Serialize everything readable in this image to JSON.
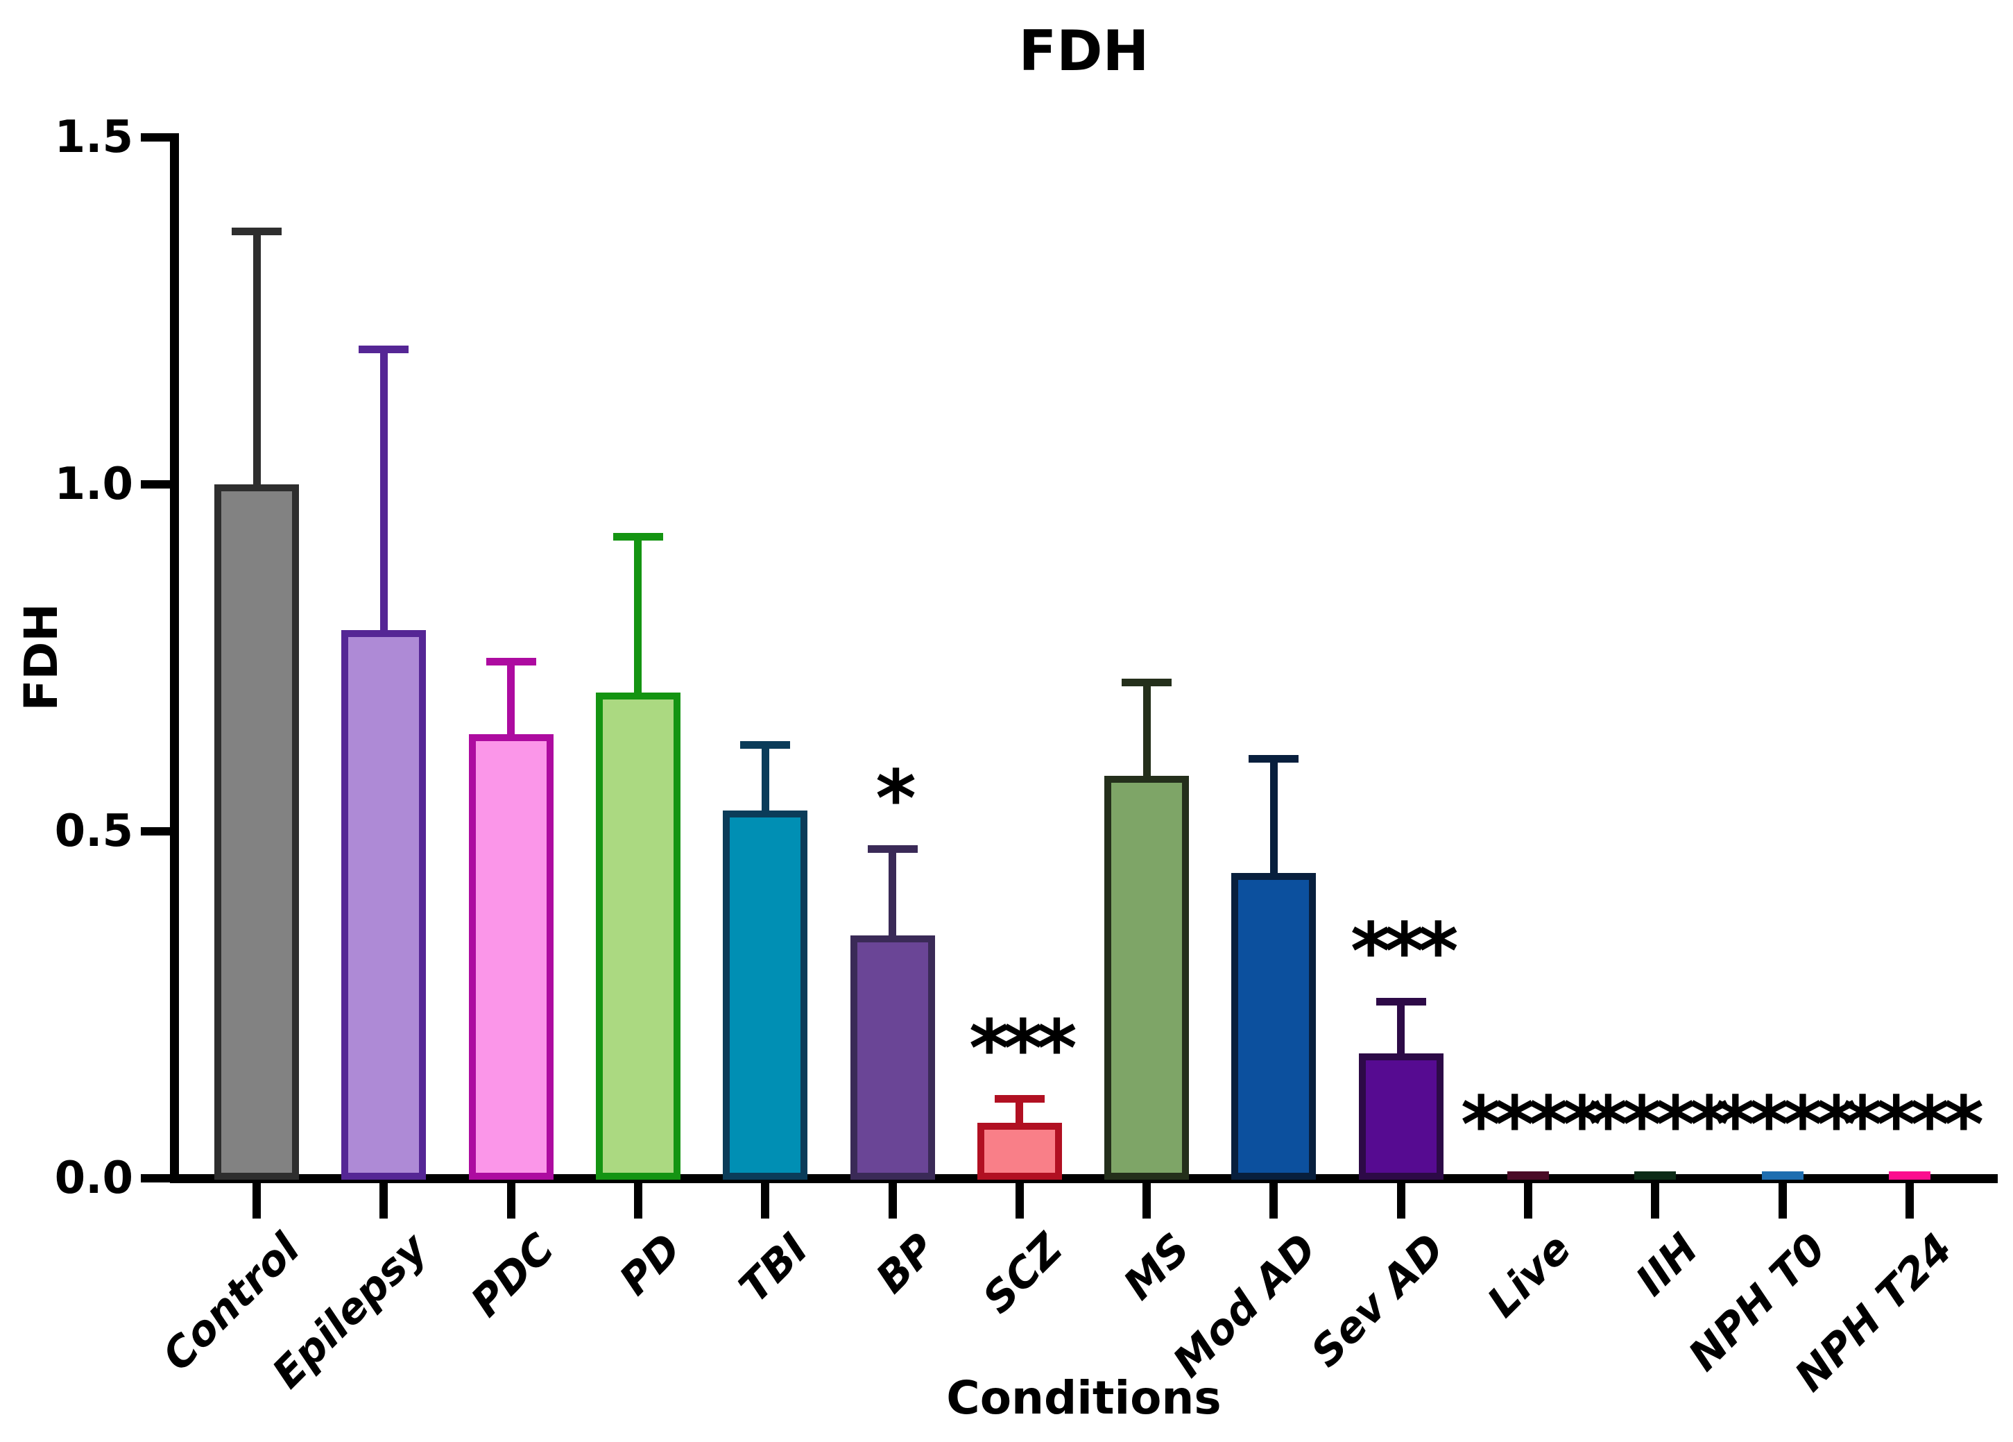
{
  "title": "FDH",
  "axes": {
    "y_label": "FDH",
    "x_label": "Conditions",
    "y_tick_labels": [
      "0.0",
      "0.5",
      "1.0",
      "1.5"
    ]
  },
  "chart_data": {
    "type": "bar",
    "title": "FDH",
    "xlabel": "Conditions",
    "ylabel": "FDH",
    "ylim": [
      0,
      1.5
    ],
    "yticks": [
      0,
      0.5,
      1.0,
      1.5
    ],
    "grid": false,
    "legend": "none",
    "error_bar_type": "SD, upper only",
    "categories": [
      "Control",
      "Epilepsy",
      "PDC",
      "PD",
      "TBI",
      "BP",
      "SCZ",
      "MS",
      "Mod AD",
      "Sev AD",
      "Live",
      "IIH",
      "NPH T0",
      "NPH T24"
    ],
    "values": [
      1.0,
      0.79,
      0.64,
      0.7,
      0.53,
      0.35,
      0.08,
      0.58,
      0.44,
      0.18,
      0.01,
      0.01,
      0.01,
      0.01
    ],
    "errors_sd": [
      0.37,
      0.41,
      0.11,
      0.23,
      0.1,
      0.13,
      0.04,
      0.14,
      0.17,
      0.08,
      null,
      null,
      null,
      null
    ],
    "significance": [
      "",
      "",
      "",
      "",
      "",
      "*",
      "***",
      "",
      "",
      "***",
      "****",
      "****",
      "****",
      "****"
    ],
    "bar_styles": [
      {
        "fill": "#828282",
        "border": "#2e2e2e"
      },
      {
        "fill": "#ae8ad6",
        "border": "#552695"
      },
      {
        "fill": "#fb96e9",
        "border": "#ad0ba0"
      },
      {
        "fill": "#abd981",
        "border": "#149412"
      },
      {
        "fill": "#008fb4",
        "border": "#0b3c59"
      },
      {
        "fill": "#6a4596",
        "border": "#3a2a57"
      },
      {
        "fill": "#f97f88",
        "border": "#b11022"
      },
      {
        "fill": "#7ea567",
        "border": "#242f1b"
      },
      {
        "fill": "#0c509e",
        "border": "#081f3d"
      },
      {
        "fill": "#560b91",
        "border": "#2d0a47"
      },
      {
        "fill": "#4a0b26",
        "border": "#4a0b26"
      },
      {
        "fill": "#0d2b17",
        "border": "#0d2b17"
      },
      {
        "fill": "#1f6eb0",
        "border": "#1f6eb0"
      },
      {
        "fill": "#fb0e8e",
        "border": "#fb0e8e"
      }
    ],
    "colors": {
      "axis": "#000000",
      "text": "#000000",
      "background": "#ffffff"
    }
  }
}
